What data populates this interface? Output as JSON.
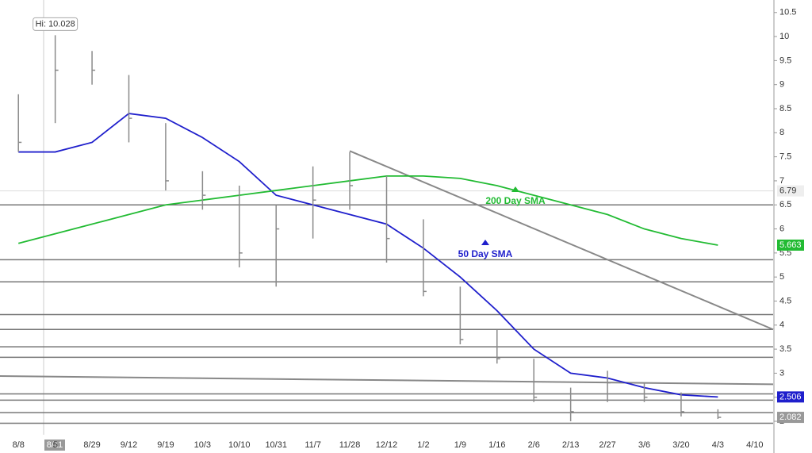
{
  "chart_data": {
    "type": "ohlc",
    "categories": [
      "8/8",
      "5",
      "8/29",
      "9/12",
      "9/19",
      "10/3",
      "10/10",
      "10/31",
      "11/7",
      "11/28",
      "12/12",
      "1/2",
      "1/9",
      "1/16",
      "2/6",
      "2/13",
      "2/27",
      "3/6",
      "3/20",
      "4/3",
      "4/10"
    ],
    "high": [
      8.8,
      10.028,
      9.7,
      9.2,
      8.2,
      7.2,
      6.9,
      6.5,
      7.3,
      7.6,
      7.1,
      6.2,
      4.8,
      3.9,
      3.3,
      2.7,
      3.05,
      2.8,
      2.6,
      2.25,
      null
    ],
    "low": [
      7.6,
      8.2,
      9.0,
      7.8,
      6.8,
      6.4,
      5.2,
      4.8,
      5.8,
      6.4,
      5.3,
      4.6,
      3.6,
      3.2,
      2.4,
      2.0,
      2.4,
      2.4,
      2.1,
      2.05,
      null
    ],
    "close": [
      7.8,
      9.3,
      9.3,
      8.3,
      7.0,
      6.7,
      5.5,
      6.0,
      6.6,
      6.9,
      5.8,
      4.7,
      3.7,
      3.3,
      2.5,
      2.2,
      2.8,
      2.5,
      2.2,
      2.082,
      null
    ],
    "bar_color": "#8a8a8a",
    "series": [
      {
        "name": "50 Day SMA",
        "color": "#1f1fcc",
        "values": [
          7.6,
          7.6,
          7.8,
          8.4,
          8.3,
          7.9,
          7.4,
          6.7,
          6.5,
          6.3,
          6.1,
          5.6,
          5.0,
          4.3,
          3.5,
          3.0,
          2.9,
          2.7,
          2.55,
          2.506,
          null
        ]
      },
      {
        "name": "200 Day SMA",
        "color": "#22bb33",
        "values": [
          5.7,
          5.9,
          6.1,
          6.3,
          6.5,
          6.6,
          6.7,
          6.8,
          6.9,
          7.0,
          7.1,
          7.1,
          7.05,
          6.9,
          6.7,
          6.5,
          6.3,
          6.0,
          5.8,
          5.663,
          null
        ]
      }
    ],
    "levels": [
      6.5,
      5.36,
      4.9,
      4.22,
      3.91,
      3.55,
      3.33,
      2.57,
      2.44,
      2.18,
      1.96
    ],
    "trendlines": [
      {
        "from": "11/28",
        "from_value": 7.62,
        "to": "4/10",
        "to_value": 3.91
      },
      {
        "from": "8/8",
        "from_value": 2.94,
        "to": "4/10",
        "to_value": 2.77
      }
    ],
    "hi_label": "Hi: 10.028",
    "cursor": {
      "date": "8/11",
      "value": 6.79
    },
    "ylim": [
      1.72,
      10.76
    ],
    "yticks": [
      2,
      2.5,
      3,
      3.5,
      4,
      4.5,
      5,
      5.5,
      6,
      6.5,
      7,
      7.5,
      8,
      8.5,
      9,
      9.5,
      10,
      10.5
    ]
  }
}
